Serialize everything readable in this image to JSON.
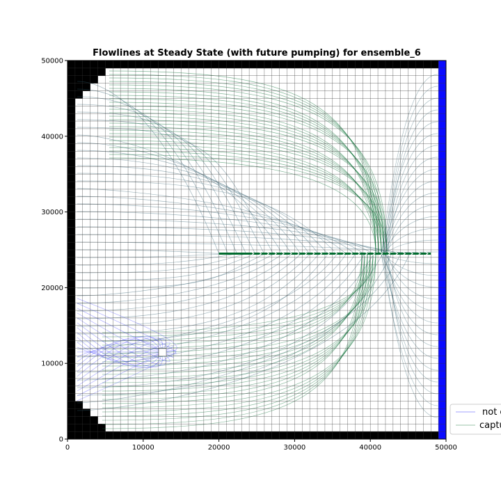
{
  "chart_data": {
    "type": "streamline",
    "title": "Flowlines at Steady State (with future pumping) for ensemble_6",
    "xlabel": "",
    "ylabel": "",
    "xlim": [
      0,
      50000
    ],
    "ylim": [
      0,
      50000
    ],
    "x_ticks": [
      "0",
      "10000",
      "20000",
      "30000",
      "40000",
      "50000"
    ],
    "y_ticks": [
      "0",
      "10000",
      "20000",
      "30000",
      "40000",
      "50000"
    ],
    "x_tick_values": [
      0,
      10000,
      20000,
      30000,
      40000,
      50000
    ],
    "y_tick_values": [
      0,
      10000,
      20000,
      30000,
      40000,
      50000
    ],
    "grid": {
      "rows": 50,
      "cols": 50,
      "cell_size": 1000
    },
    "inactive_color": "#000000",
    "boundary_color": "#0a0aff",
    "flowline_color": "#2e5e6e",
    "capture_color": "#006b2e",
    "not_captured_color": "#1a1aff",
    "pumping_well": {
      "x": 12500,
      "y": 11500
    },
    "drain": {
      "x_start": 20000,
      "x_end": 48000,
      "y": 24500
    },
    "legend": [
      "not captured",
      "captured"
    ],
    "legend_placement": "lower-right, partially clipped"
  }
}
